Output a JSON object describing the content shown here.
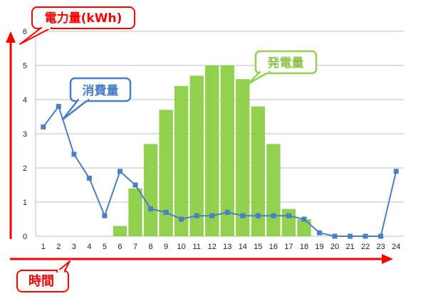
{
  "chart_data": {
    "type": "bar",
    "ylabel": "電力量(kWh)",
    "xlabel": "時間",
    "ylim": [
      0,
      6
    ],
    "yticks": [
      0,
      1,
      2,
      3,
      4,
      5,
      6
    ],
    "grid": true,
    "categories": [
      "1",
      "2",
      "3",
      "4",
      "5",
      "6",
      "7",
      "8",
      "9",
      "10",
      "11",
      "12",
      "13",
      "14",
      "15",
      "16",
      "17",
      "18",
      "19",
      "20",
      "21",
      "22",
      "23",
      "24"
    ],
    "series": [
      {
        "name": "発電量",
        "type": "bar",
        "color": "#92d050",
        "values": [
          0,
          0,
          0,
          0,
          0,
          0.3,
          1.4,
          2.7,
          3.7,
          4.4,
          4.7,
          5.0,
          5.0,
          4.6,
          3.8,
          2.7,
          0.8,
          0.5,
          0,
          0,
          0,
          0,
          0,
          0
        ]
      },
      {
        "name": "消費量",
        "type": "line",
        "color": "#4a7fc5",
        "values": [
          3.2,
          3.8,
          2.4,
          1.7,
          0.6,
          1.9,
          1.5,
          0.8,
          0.7,
          0.5,
          0.6,
          0.6,
          0.7,
          0.6,
          0.6,
          0.6,
          0.6,
          0.5,
          0.1,
          0,
          0,
          0,
          0,
          1.9
        ]
      }
    ]
  },
  "colors": {
    "axis_arrow": "#ff0000",
    "callout_axis_border": "#ff0000",
    "callout_consumption": "#4a7fc5",
    "callout_generation": "#92d050",
    "gridline": "#bfbfbf"
  }
}
